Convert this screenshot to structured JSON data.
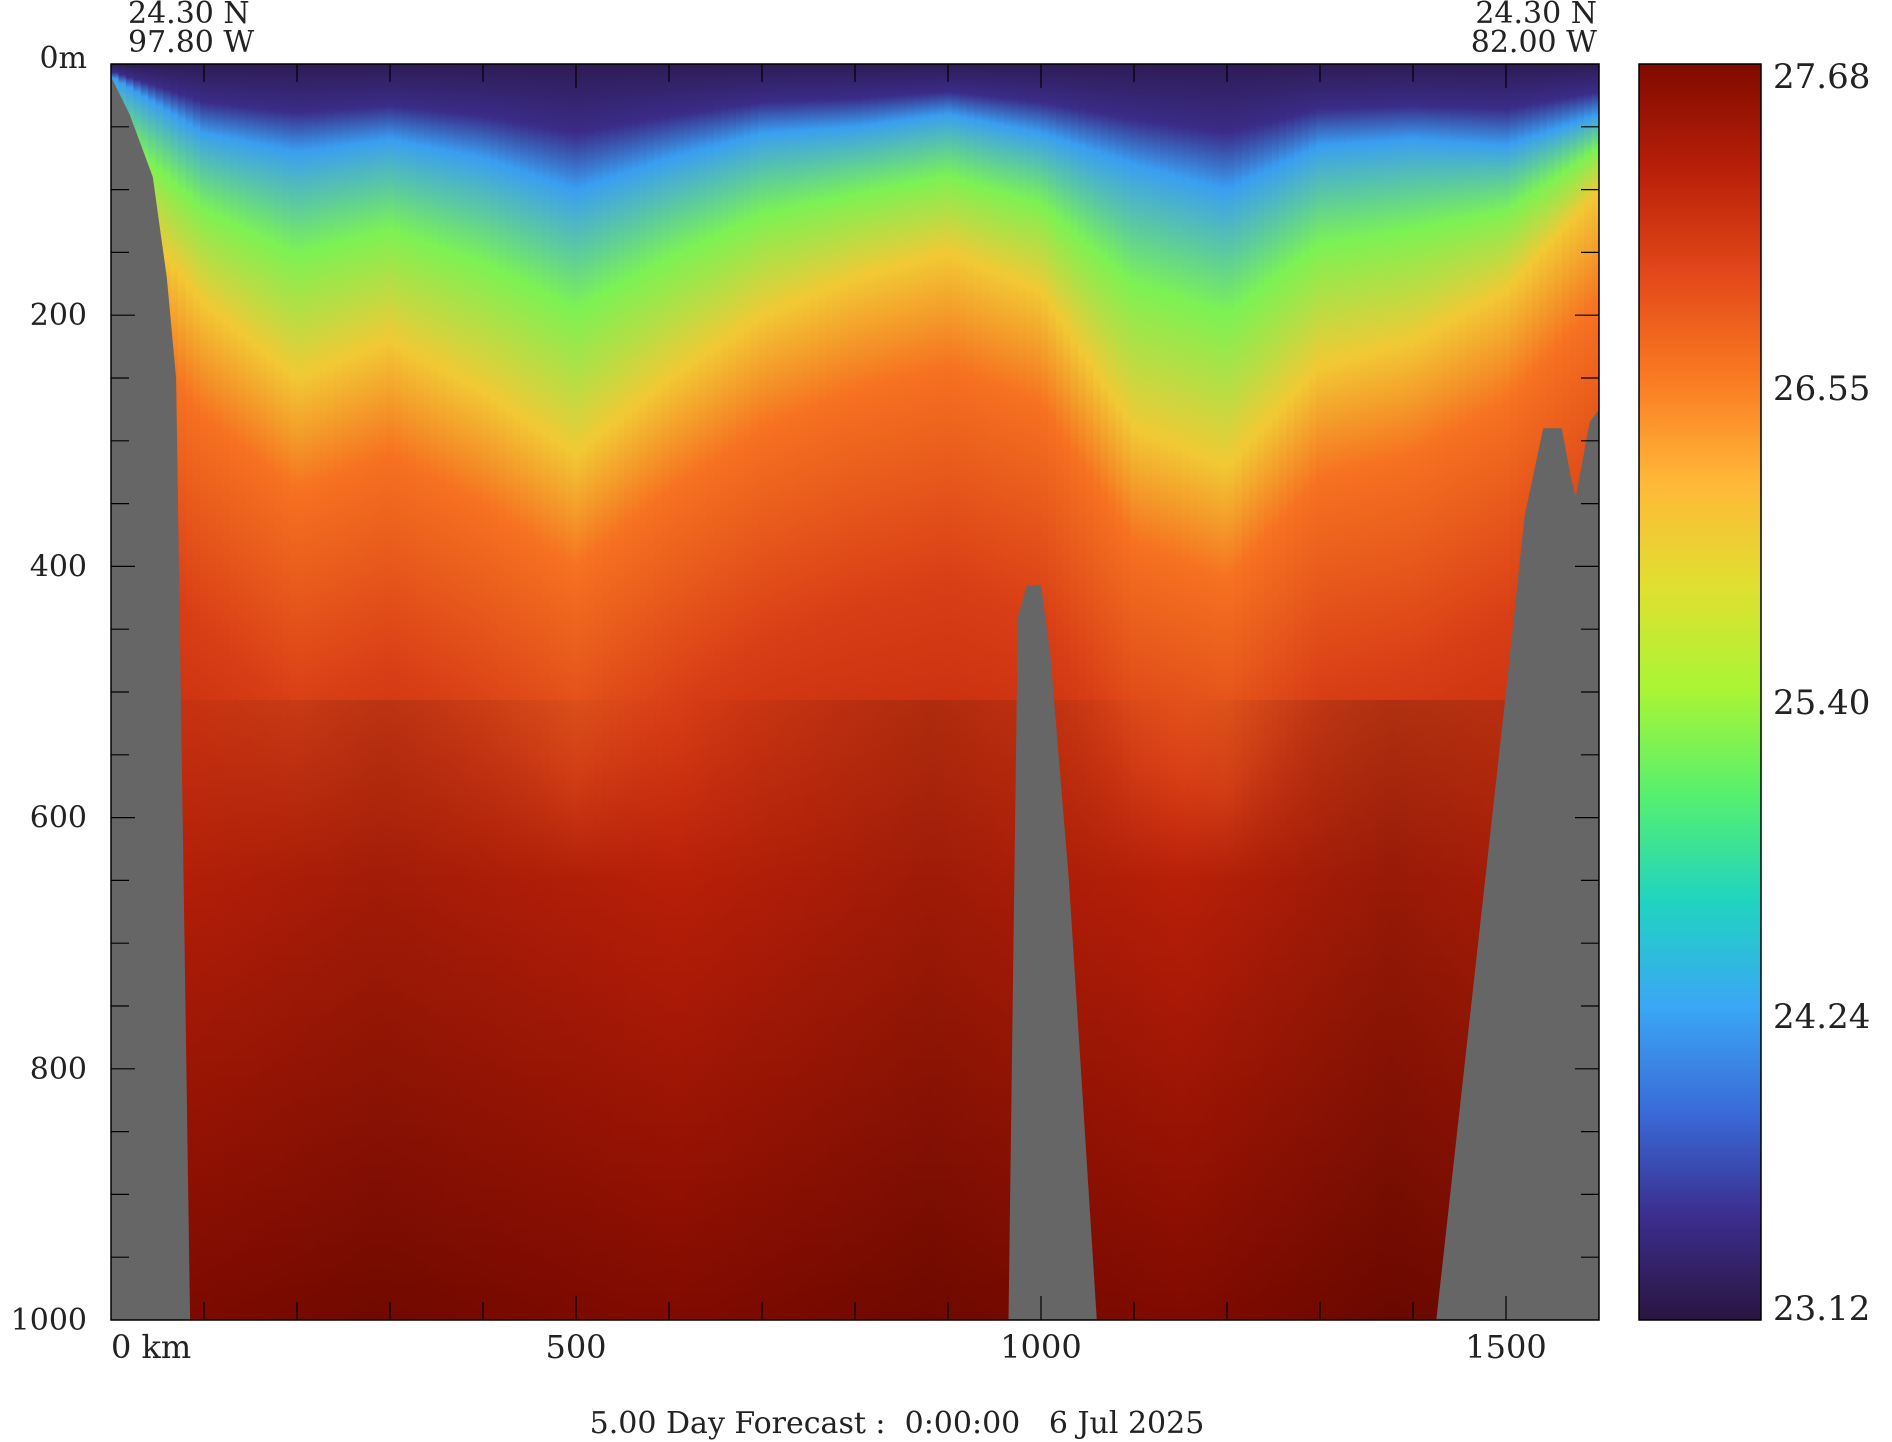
{
  "chart_data": {
    "type": "heatmap",
    "title": "5.00 Day Forecast :  0:00:00   6 Jul 2025",
    "corners": {
      "left_lat": "24.30 N",
      "left_lon": "97.80 W",
      "right_lat": "24.30 N",
      "right_lon": "82.00 W"
    },
    "x_axis": {
      "unit": "km",
      "range": [
        0,
        1600
      ],
      "ticks": [
        {
          "value": 0,
          "label": "0 km"
        },
        {
          "value": 500,
          "label": "500"
        },
        {
          "value": 1000,
          "label": "1000"
        },
        {
          "value": 1500,
          "label": "1500"
        }
      ],
      "minor_step": 100
    },
    "y_axis": {
      "unit": "m",
      "range": [
        0,
        1000
      ],
      "inverted": true,
      "ticks": [
        {
          "value": 0,
          "label": "0m"
        },
        {
          "value": 200,
          "label": "200"
        },
        {
          "value": 400,
          "label": "400"
        },
        {
          "value": 600,
          "label": "600"
        },
        {
          "value": 800,
          "label": "800"
        },
        {
          "value": 1000,
          "label": "1000"
        }
      ],
      "minor_step": 50
    },
    "colorbar": {
      "range": [
        23.12,
        27.68
      ],
      "ticks": [
        "27.68",
        "26.55",
        "25.40",
        "24.24",
        "23.12"
      ],
      "colors": [
        "#2a1540",
        "#3b2e8e",
        "#3a6bd9",
        "#3aa7f5",
        "#20d4c0",
        "#55f070",
        "#a8f535",
        "#e0e030",
        "#ffb838",
        "#fa7a22",
        "#e2481a",
        "#b81f08",
        "#800a00"
      ]
    },
    "land_color": "#666666",
    "profile_x": [
      0,
      100,
      200,
      300,
      400,
      500,
      600,
      700,
      800,
      900,
      1000,
      1100,
      1200,
      1300,
      1400,
      1500,
      1600
    ],
    "mixed_layer_depth_m": [
      10,
      55,
      70,
      60,
      75,
      100,
      75,
      55,
      50,
      40,
      55,
      80,
      100,
      65,
      60,
      65,
      40
    ],
    "isotherm_26_depth_m": [
      100,
      190,
      250,
      220,
      260,
      310,
      250,
      200,
      170,
      150,
      180,
      290,
      320,
      240,
      220,
      180,
      100
    ],
    "bathymetry": [
      {
        "x": 0,
        "depth": 10
      },
      {
        "x": 20,
        "depth": 40
      },
      {
        "x": 45,
        "depth": 90
      },
      {
        "x": 60,
        "depth": 170
      },
      {
        "x": 70,
        "depth": 250
      },
      {
        "x": 75,
        "depth": 500
      },
      {
        "x": 85,
        "depth": 1000
      },
      {
        "x": 965,
        "depth": 1000
      },
      {
        "x": 975,
        "depth": 440
      },
      {
        "x": 985,
        "depth": 415
      },
      {
        "x": 1000,
        "depth": 415
      },
      {
        "x": 1010,
        "depth": 470
      },
      {
        "x": 1030,
        "depth": 650
      },
      {
        "x": 1060,
        "depth": 1000
      },
      {
        "x": 1425,
        "depth": 1000
      },
      {
        "x": 1440,
        "depth": 900
      },
      {
        "x": 1470,
        "depth": 700
      },
      {
        "x": 1500,
        "depth": 500
      },
      {
        "x": 1520,
        "depth": 360
      },
      {
        "x": 1540,
        "depth": 290
      },
      {
        "x": 1560,
        "depth": 290
      },
      {
        "x": 1570,
        "depth": 330
      },
      {
        "x": 1575,
        "depth": 345
      },
      {
        "x": 1590,
        "depth": 285
      },
      {
        "x": 1600,
        "depth": 275
      }
    ]
  }
}
